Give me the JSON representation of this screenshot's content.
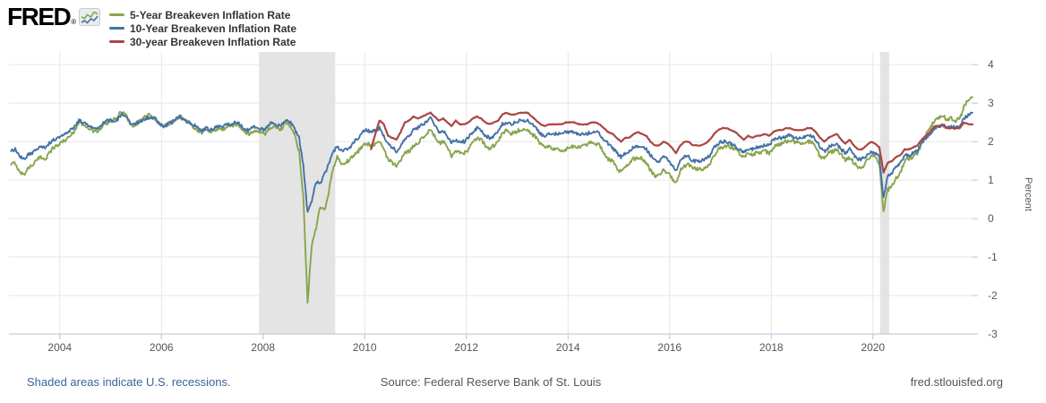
{
  "header": {
    "logo_text": "FRED",
    "logo_reg": "®"
  },
  "footer": {
    "note": "Shaded areas indicate U.S. recessions.",
    "source": "Source: Federal Reserve Bank of St. Louis",
    "site": "fred.stlouisfed.org"
  },
  "colors": {
    "grid": "#e6e6e6",
    "axis": "#b2c4d6",
    "tick_label": "#555555",
    "recession_band": "#e4e4e4",
    "legend_text": "#333333",
    "footer_link": "#3c62a1",
    "footer_text": "#555555"
  },
  "chart_data": {
    "type": "line",
    "title": "",
    "xlabel": "",
    "ylabel": "Percent",
    "ylim": [
      -3,
      4.33
    ],
    "yticks": [
      4,
      3,
      2,
      1,
      0,
      -1,
      -2,
      -3
    ],
    "xlim": [
      2003.0,
      2021.96
    ],
    "xticks": [
      2004,
      2006,
      2008,
      2010,
      2012,
      2014,
      2016,
      2018,
      2020
    ],
    "grid": true,
    "legend_position": "top-left",
    "recessions": [
      {
        "start": 2007.92,
        "end": 2009.42
      },
      {
        "start": 2020.14,
        "end": 2020.32
      }
    ],
    "series": [
      {
        "name": "5-Year Breakeven Inflation Rate",
        "color": "#89A54E",
        "start_year": 2003,
        "start_month": 1,
        "interval": "monthly",
        "daily_noise": 0.05,
        "values": [
          1.4,
          1.45,
          1.2,
          1.15,
          1.3,
          1.4,
          1.5,
          1.6,
          1.55,
          1.7,
          1.85,
          1.9,
          2.0,
          2.05,
          2.15,
          2.3,
          2.5,
          2.45,
          2.4,
          2.3,
          2.25,
          2.3,
          2.45,
          2.5,
          2.55,
          2.6,
          2.8,
          2.7,
          2.5,
          2.4,
          2.5,
          2.6,
          2.65,
          2.7,
          2.6,
          2.45,
          2.4,
          2.45,
          2.5,
          2.6,
          2.65,
          2.55,
          2.5,
          2.4,
          2.3,
          2.25,
          2.3,
          2.25,
          2.3,
          2.35,
          2.3,
          2.4,
          2.4,
          2.45,
          2.4,
          2.25,
          2.2,
          2.25,
          2.3,
          2.25,
          2.2,
          2.35,
          2.4,
          2.3,
          2.35,
          2.5,
          2.4,
          2.15,
          1.75,
          0.6,
          -2.2,
          -0.7,
          -0.25,
          0.3,
          0.2,
          0.7,
          1.3,
          1.6,
          1.4,
          1.45,
          1.55,
          1.65,
          1.75,
          1.9,
          1.95,
          1.9,
          1.95,
          2.0,
          1.8,
          1.55,
          1.45,
          1.35,
          1.5,
          1.7,
          1.75,
          1.9,
          1.95,
          2.1,
          2.2,
          2.3,
          2.15,
          1.95,
          2.0,
          1.85,
          1.6,
          1.75,
          1.7,
          1.7,
          1.8,
          1.95,
          2.1,
          2.05,
          1.9,
          1.8,
          1.9,
          2.0,
          2.2,
          2.3,
          2.2,
          2.25,
          2.3,
          2.3,
          2.3,
          2.2,
          2.1,
          1.95,
          1.85,
          1.85,
          1.8,
          1.8,
          1.75,
          1.8,
          1.85,
          1.85,
          1.85,
          1.9,
          1.9,
          2.0,
          1.95,
          1.9,
          1.7,
          1.55,
          1.5,
          1.3,
          1.2,
          1.35,
          1.45,
          1.55,
          1.6,
          1.55,
          1.45,
          1.25,
          1.1,
          1.15,
          1.25,
          1.2,
          1.05,
          0.95,
          1.25,
          1.35,
          1.4,
          1.3,
          1.3,
          1.25,
          1.3,
          1.4,
          1.65,
          1.8,
          1.85,
          1.9,
          1.85,
          1.8,
          1.7,
          1.6,
          1.7,
          1.65,
          1.7,
          1.7,
          1.75,
          1.7,
          1.85,
          1.9,
          1.95,
          2.0,
          2.05,
          2.0,
          2.0,
          1.95,
          2.0,
          2.0,
          1.85,
          1.6,
          1.55,
          1.7,
          1.75,
          1.8,
          1.65,
          1.5,
          1.6,
          1.45,
          1.35,
          1.3,
          1.5,
          1.65,
          1.6,
          1.45,
          0.2,
          0.75,
          0.85,
          1.05,
          1.2,
          1.5,
          1.55,
          1.6,
          1.7,
          1.95,
          2.2,
          2.35,
          2.55,
          2.6,
          2.7,
          2.55,
          2.6,
          2.55,
          2.6,
          2.9,
          3.1,
          3.15
        ]
      },
      {
        "name": "10-Year Breakeven Inflation Rate",
        "color": "#4572A7",
        "start_year": 2003,
        "start_month": 1,
        "interval": "monthly",
        "daily_noise": 0.045,
        "values": [
          1.75,
          1.8,
          1.6,
          1.55,
          1.65,
          1.7,
          1.8,
          1.9,
          1.85,
          1.95,
          2.05,
          2.1,
          2.15,
          2.2,
          2.3,
          2.4,
          2.55,
          2.5,
          2.45,
          2.4,
          2.35,
          2.4,
          2.5,
          2.55,
          2.55,
          2.55,
          2.7,
          2.65,
          2.5,
          2.45,
          2.5,
          2.55,
          2.6,
          2.65,
          2.6,
          2.45,
          2.4,
          2.45,
          2.5,
          2.6,
          2.65,
          2.55,
          2.5,
          2.45,
          2.35,
          2.3,
          2.35,
          2.3,
          2.35,
          2.4,
          2.4,
          2.45,
          2.45,
          2.5,
          2.45,
          2.35,
          2.3,
          2.35,
          2.4,
          2.35,
          2.3,
          2.45,
          2.5,
          2.4,
          2.45,
          2.55,
          2.5,
          2.3,
          2.1,
          1.4,
          0.15,
          0.45,
          0.95,
          0.9,
          1.15,
          1.4,
          1.7,
          1.9,
          1.75,
          1.8,
          1.85,
          2.0,
          2.1,
          2.25,
          2.3,
          2.25,
          2.3,
          2.35,
          2.15,
          1.95,
          1.85,
          1.75,
          1.9,
          2.1,
          2.15,
          2.3,
          2.35,
          2.45,
          2.5,
          2.6,
          2.45,
          2.25,
          2.3,
          2.15,
          1.95,
          2.05,
          2.0,
          2.0,
          2.1,
          2.25,
          2.35,
          2.3,
          2.15,
          2.1,
          2.15,
          2.25,
          2.45,
          2.5,
          2.45,
          2.5,
          2.55,
          2.55,
          2.55,
          2.45,
          2.35,
          2.2,
          2.15,
          2.2,
          2.2,
          2.2,
          2.2,
          2.25,
          2.25,
          2.25,
          2.2,
          2.2,
          2.2,
          2.25,
          2.25,
          2.2,
          2.05,
          1.95,
          1.85,
          1.7,
          1.6,
          1.7,
          1.75,
          1.85,
          1.9,
          1.85,
          1.8,
          1.65,
          1.5,
          1.5,
          1.6,
          1.55,
          1.4,
          1.25,
          1.5,
          1.6,
          1.6,
          1.5,
          1.5,
          1.5,
          1.55,
          1.65,
          1.85,
          1.95,
          2.0,
          2.0,
          1.95,
          1.9,
          1.8,
          1.7,
          1.8,
          1.8,
          1.85,
          1.85,
          1.9,
          1.9,
          2.05,
          2.1,
          2.1,
          2.15,
          2.15,
          2.1,
          2.1,
          2.1,
          2.15,
          2.15,
          2.05,
          1.85,
          1.75,
          1.85,
          1.9,
          1.95,
          1.8,
          1.7,
          1.8,
          1.65,
          1.55,
          1.55,
          1.65,
          1.75,
          1.7,
          1.6,
          0.55,
          1.1,
          1.2,
          1.35,
          1.45,
          1.65,
          1.65,
          1.7,
          1.75,
          1.95,
          2.1,
          2.2,
          2.35,
          2.4,
          2.45,
          2.35,
          2.4,
          2.35,
          2.4,
          2.6,
          2.7,
          2.75
        ]
      },
      {
        "name": "30-year Breakeven Inflation Rate",
        "color": "#AA4643",
        "start_year": 2010,
        "start_month": 2,
        "interval": "monthly",
        "daily_noise": 0.008,
        "values": [
          1.8,
          2.2,
          2.55,
          2.45,
          2.15,
          2.1,
          2.05,
          2.25,
          2.5,
          2.55,
          2.65,
          2.6,
          2.65,
          2.7,
          2.75,
          2.65,
          2.55,
          2.6,
          2.5,
          2.4,
          2.55,
          2.45,
          2.45,
          2.5,
          2.6,
          2.65,
          2.6,
          2.5,
          2.45,
          2.5,
          2.55,
          2.7,
          2.75,
          2.7,
          2.7,
          2.75,
          2.75,
          2.75,
          2.65,
          2.55,
          2.45,
          2.4,
          2.45,
          2.45,
          2.45,
          2.45,
          2.5,
          2.5,
          2.5,
          2.45,
          2.45,
          2.45,
          2.5,
          2.5,
          2.45,
          2.35,
          2.25,
          2.2,
          2.1,
          2.0,
          2.1,
          2.1,
          2.2,
          2.25,
          2.2,
          2.15,
          2.0,
          1.9,
          1.9,
          2.0,
          1.95,
          1.85,
          1.7,
          1.9,
          2.0,
          2.0,
          1.9,
          1.9,
          1.9,
          1.95,
          2.05,
          2.2,
          2.3,
          2.35,
          2.35,
          2.3,
          2.25,
          2.15,
          2.05,
          2.15,
          2.1,
          2.15,
          2.15,
          2.2,
          2.15,
          2.25,
          2.3,
          2.3,
          2.35,
          2.35,
          2.3,
          2.3,
          2.3,
          2.35,
          2.35,
          2.25,
          2.1,
          2.0,
          2.1,
          2.15,
          2.2,
          2.05,
          1.95,
          2.05,
          1.9,
          1.8,
          1.8,
          1.9,
          2.0,
          1.95,
          1.85,
          1.2,
          1.45,
          1.5,
          1.6,
          1.65,
          1.8,
          1.8,
          1.85,
          1.9,
          2.05,
          2.15,
          2.25,
          2.4,
          2.4,
          2.45,
          2.35,
          2.35,
          2.35,
          2.35,
          2.5,
          2.45,
          2.45
        ]
      }
    ]
  }
}
